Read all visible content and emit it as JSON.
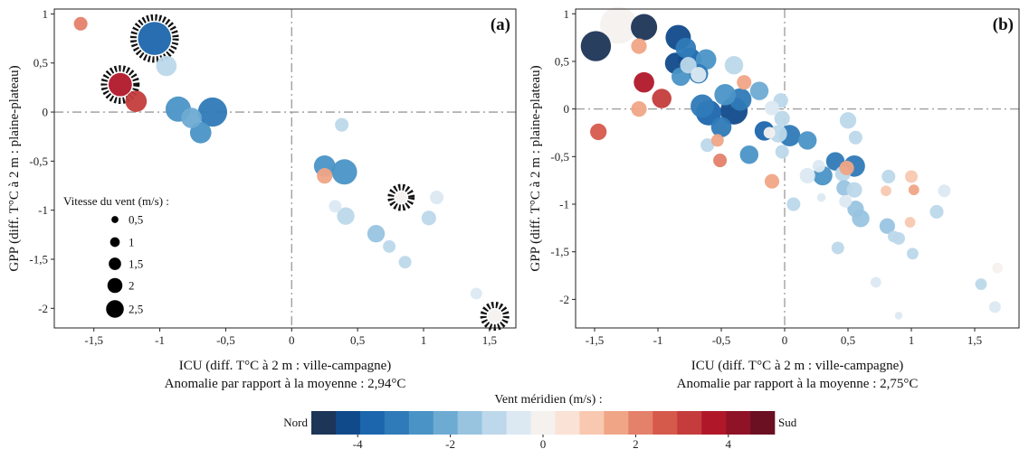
{
  "chart_data": [
    {
      "type": "scatter",
      "panel": "(a)",
      "xlabel": "ICU (diff. T°C à 2 m : ville-campagne)",
      "ylabel": "GPP (diff. T°C à 2 m : plaine-plateau)",
      "subtitle": "Anomalie par rapport à la moyenne : 2,94°C",
      "xlim": [
        -1.8,
        1.7
      ],
      "ylim": [
        -2.2,
        1.05
      ],
      "xticks": [
        -1.5,
        -1,
        -0.5,
        0,
        0.5,
        1,
        1.5
      ],
      "xtick_labels": [
        "-1,5",
        "-1",
        "-0,5",
        "0",
        "0,5",
        "1",
        "1,5"
      ],
      "yticks": [
        1,
        0.5,
        0,
        -0.5,
        -1,
        -1.5,
        -2
      ],
      "ytick_labels": [
        "1",
        "0,5",
        "0",
        "-0,5",
        "-1",
        "-1,5",
        "-2"
      ],
      "size_legend": {
        "title": "Vitesse du vent (m/s) :",
        "sizes": [
          0.5,
          1,
          1.5,
          2,
          2.5
        ],
        "labels": [
          "0,5",
          "1",
          "1,5",
          "2",
          "2,5"
        ]
      },
      "points": [
        {
          "x": -1.6,
          "y": 0.9,
          "wind": 0.8,
          "vm": 2.0
        },
        {
          "x": -1.04,
          "y": 0.75,
          "wind": 2.8,
          "vm": -3.5,
          "hatched": true
        },
        {
          "x": -0.95,
          "y": 0.47,
          "wind": 1.5,
          "vm": -1.2
        },
        {
          "x": -1.3,
          "y": 0.28,
          "wind": 1.8,
          "vm": 3.5,
          "hatched": true
        },
        {
          "x": -1.18,
          "y": 0.11,
          "wind": 1.6,
          "vm": 3.0
        },
        {
          "x": -0.86,
          "y": 0.03,
          "wind": 2.0,
          "vm": -2.8
        },
        {
          "x": -0.76,
          "y": -0.06,
          "wind": 1.5,
          "vm": -2.2
        },
        {
          "x": -0.6,
          "y": 0.0,
          "wind": 2.4,
          "vm": -3.0
        },
        {
          "x": -0.69,
          "y": -0.21,
          "wind": 1.6,
          "vm": -2.6
        },
        {
          "x": 0.38,
          "y": -0.13,
          "wind": 0.8,
          "vm": -1.0
        },
        {
          "x": 0.25,
          "y": -0.55,
          "wind": 1.6,
          "vm": -2.4
        },
        {
          "x": 0.4,
          "y": -0.61,
          "wind": 2.0,
          "vm": -2.8
        },
        {
          "x": 0.25,
          "y": -0.65,
          "wind": 1.0,
          "vm": 1.8
        },
        {
          "x": 0.83,
          "y": -0.87,
          "wind": 0.6,
          "vm": 0.0,
          "hatched": true
        },
        {
          "x": 1.1,
          "y": -0.87,
          "wind": 0.8,
          "vm": -0.6
        },
        {
          "x": 0.33,
          "y": -0.96,
          "wind": 0.7,
          "vm": -0.5
        },
        {
          "x": 0.41,
          "y": -1.06,
          "wind": 1.2,
          "vm": -1.2
        },
        {
          "x": 1.04,
          "y": -1.08,
          "wind": 0.9,
          "vm": -0.8
        },
        {
          "x": 0.64,
          "y": -1.24,
          "wind": 1.2,
          "vm": -1.6
        },
        {
          "x": 0.74,
          "y": -1.37,
          "wind": 0.7,
          "vm": -1.0
        },
        {
          "x": 0.86,
          "y": -1.53,
          "wind": 0.7,
          "vm": -0.9
        },
        {
          "x": 1.4,
          "y": -1.85,
          "wind": 0.6,
          "vm": -0.7
        },
        {
          "x": 1.54,
          "y": -2.08,
          "wind": 0.8,
          "vm": 0.0,
          "hatched": true
        }
      ]
    },
    {
      "type": "scatter",
      "panel": "(b)",
      "xlabel": "ICU (diff. T°C à 2 m : ville-campagne)",
      "ylabel": "GPP (diff. T°C à 2 m : plaine-plateau)",
      "subtitle": "Anomalie par rapport à la moyenne : 2,75°C",
      "xlim": [
        -1.65,
        1.85
      ],
      "ylim": [
        -2.3,
        1.05
      ],
      "xticks": [
        -1.5,
        -1,
        -0.5,
        0,
        0.5,
        1,
        1.5
      ],
      "xtick_labels": [
        "-1,5",
        "-1",
        "-0,5",
        "0",
        "0,5",
        "1",
        "1,5"
      ],
      "yticks": [
        1,
        0.5,
        0,
        -0.5,
        -1,
        -1.5,
        -2
      ],
      "ytick_labels": [
        "1",
        "0,5",
        "0",
        "-0,5",
        "-1",
        "-1,5",
        "-2"
      ],
      "points": [
        {
          "x": -1.49,
          "y": 0.66,
          "wind": 2.5,
          "vm": -5.0
        },
        {
          "x": -1.31,
          "y": 0.88,
          "wind": 3.2,
          "vm": -0.2
        },
        {
          "x": -1.11,
          "y": 0.86,
          "wind": 2.1,
          "vm": -4.5
        },
        {
          "x": -1.15,
          "y": 0.66,
          "wind": 1.0,
          "vm": 1.8
        },
        {
          "x": -1.11,
          "y": 0.28,
          "wind": 1.5,
          "vm": 3.6
        },
        {
          "x": -0.97,
          "y": 0.11,
          "wind": 1.4,
          "vm": 3.2
        },
        {
          "x": -1.15,
          "y": 0.0,
          "wind": 1.0,
          "vm": 1.6
        },
        {
          "x": -1.47,
          "y": -0.24,
          "wind": 1.1,
          "vm": 2.6
        },
        {
          "x": -0.84,
          "y": 0.75,
          "wind": 2.0,
          "vm": -4.0
        },
        {
          "x": -0.78,
          "y": 0.64,
          "wind": 1.5,
          "vm": -3.0
        },
        {
          "x": -0.86,
          "y": 0.48,
          "wind": 1.6,
          "vm": -4.2
        },
        {
          "x": -0.75,
          "y": 0.52,
          "wind": 1.8,
          "vm": -3.8
        },
        {
          "x": -0.76,
          "y": 0.46,
          "wind": 1.1,
          "vm": -1.2
        },
        {
          "x": -0.62,
          "y": 0.52,
          "wind": 1.5,
          "vm": -2.4
        },
        {
          "x": -0.68,
          "y": 0.37,
          "wind": 1.4,
          "vm": -3.0
        },
        {
          "x": -0.82,
          "y": 0.34,
          "wind": 1.3,
          "vm": -2.6
        },
        {
          "x": -0.68,
          "y": 0.36,
          "wind": 1.0,
          "vm": -0.3
        },
        {
          "x": -0.4,
          "y": 0.46,
          "wind": 1.3,
          "vm": -1.2
        },
        {
          "x": -0.32,
          "y": 0.28,
          "wind": 0.9,
          "vm": 1.5
        },
        {
          "x": -0.47,
          "y": 0.15,
          "wind": 1.6,
          "vm": -2.6
        },
        {
          "x": -0.2,
          "y": 0.19,
          "wind": 1.3,
          "vm": -2.0
        },
        {
          "x": -0.35,
          "y": 0.1,
          "wind": 1.7,
          "vm": -3.0
        },
        {
          "x": -0.65,
          "y": 0.03,
          "wind": 1.8,
          "vm": -3.3
        },
        {
          "x": -0.6,
          "y": -0.04,
          "wind": 2.0,
          "vm": -3.6
        },
        {
          "x": -0.4,
          "y": -0.02,
          "wind": 2.2,
          "vm": -4.0
        },
        {
          "x": -0.5,
          "y": -0.19,
          "wind": 1.5,
          "vm": -3.0
        },
        {
          "x": -0.16,
          "y": -0.23,
          "wind": 1.4,
          "vm": -3.6
        },
        {
          "x": -0.12,
          "y": -0.25,
          "wind": 0.6,
          "vm": 0.0
        },
        {
          "x": -0.02,
          "y": -0.1,
          "wind": 1.0,
          "vm": -0.8
        },
        {
          "x": -0.05,
          "y": -0.26,
          "wind": 1.2,
          "vm": -1.0
        },
        {
          "x": 0.04,
          "y": -0.28,
          "wind": 1.6,
          "vm": -3.2
        },
        {
          "x": 0.18,
          "y": -0.33,
          "wind": 1.3,
          "vm": -2.6
        },
        {
          "x": -0.03,
          "y": 0.09,
          "wind": 0.9,
          "vm": -0.9
        },
        {
          "x": -0.1,
          "y": 0.01,
          "wind": 0.9,
          "vm": -0.3
        },
        {
          "x": -0.61,
          "y": -0.38,
          "wind": 0.8,
          "vm": -0.9
        },
        {
          "x": -0.53,
          "y": -0.33,
          "wind": 0.7,
          "vm": 1.4
        },
        {
          "x": -0.51,
          "y": -0.54,
          "wind": 0.8,
          "vm": 2.2
        },
        {
          "x": -0.28,
          "y": -0.48,
          "wind": 1.3,
          "vm": -2.4
        },
        {
          "x": -0.02,
          "y": -0.45,
          "wind": 0.8,
          "vm": -0.9
        },
        {
          "x": -0.1,
          "y": -0.76,
          "wind": 0.9,
          "vm": 1.5
        },
        {
          "x": 0.18,
          "y": -0.7,
          "wind": 1.0,
          "vm": -0.6
        },
        {
          "x": 0.27,
          "y": -0.6,
          "wind": 0.7,
          "vm": -0.5
        },
        {
          "x": 0.3,
          "y": -0.7,
          "wind": 1.4,
          "vm": -2.4
        },
        {
          "x": 0.4,
          "y": -0.55,
          "wind": 1.3,
          "vm": -3.0
        },
        {
          "x": 0.55,
          "y": -0.6,
          "wind": 1.6,
          "vm": -3.2
        },
        {
          "x": 0.46,
          "y": -0.68,
          "wind": 1.0,
          "vm": -1.2
        },
        {
          "x": 0.49,
          "y": -0.62,
          "wind": 0.9,
          "vm": 1.6
        },
        {
          "x": 0.47,
          "y": -0.83,
          "wind": 1.0,
          "vm": -1.4
        },
        {
          "x": 0.55,
          "y": -0.85,
          "wind": 1.0,
          "vm": -1.0
        },
        {
          "x": 0.5,
          "y": -0.12,
          "wind": 1.1,
          "vm": -0.9
        },
        {
          "x": 0.56,
          "y": -0.3,
          "wind": 0.8,
          "vm": -0.8
        },
        {
          "x": 0.48,
          "y": -0.97,
          "wind": 0.7,
          "vm": -0.6
        },
        {
          "x": 0.56,
          "y": -1.05,
          "wind": 1.1,
          "vm": -1.4
        },
        {
          "x": 0.6,
          "y": -1.15,
          "wind": 1.2,
          "vm": -1.6
        },
        {
          "x": 0.07,
          "y": -1.0,
          "wind": 0.8,
          "vm": -1.0
        },
        {
          "x": 0.42,
          "y": -1.46,
          "wind": 0.7,
          "vm": -1.1
        },
        {
          "x": 0.82,
          "y": -0.71,
          "wind": 0.8,
          "vm": -0.8
        },
        {
          "x": 0.8,
          "y": -0.86,
          "wind": 0.5,
          "vm": 1.2
        },
        {
          "x": 1.0,
          "y": -0.71,
          "wind": 0.7,
          "vm": 1.0
        },
        {
          "x": 1.02,
          "y": -0.85,
          "wind": 0.5,
          "vm": 1.4
        },
        {
          "x": 0.81,
          "y": -1.23,
          "wind": 1.0,
          "vm": -1.4
        },
        {
          "x": 0.86,
          "y": -1.34,
          "wind": 0.6,
          "vm": -0.8
        },
        {
          "x": 0.9,
          "y": -1.36,
          "wind": 0.7,
          "vm": -0.9
        },
        {
          "x": 0.99,
          "y": -1.19,
          "wind": 0.5,
          "vm": 1.3
        },
        {
          "x": 1.01,
          "y": -1.52,
          "wind": 0.6,
          "vm": -1.0
        },
        {
          "x": 1.2,
          "y": -1.08,
          "wind": 0.8,
          "vm": -1.0
        },
        {
          "x": 1.26,
          "y": -0.86,
          "wind": 0.7,
          "vm": -0.6
        },
        {
          "x": 1.55,
          "y": -1.84,
          "wind": 0.6,
          "vm": -0.8
        },
        {
          "x": 1.66,
          "y": -2.08,
          "wind": 0.6,
          "vm": -0.5
        },
        {
          "x": 1.68,
          "y": -1.67,
          "wind": 0.5,
          "vm": -0.2
        },
        {
          "x": 0.72,
          "y": -1.82,
          "wind": 0.5,
          "vm": -0.5
        },
        {
          "x": 0.29,
          "y": -0.93,
          "wind": 0.3,
          "vm": -0.3
        },
        {
          "x": 0.9,
          "y": -2.17,
          "wind": 0.2,
          "vm": -0.4
        }
      ]
    }
  ],
  "color_legend": {
    "title": "Vent méridien (m/s) :",
    "left_label": "Nord",
    "right_label": "Sud",
    "min": -5,
    "max": 5,
    "tick_values": [
      -4,
      -2,
      0,
      2,
      4
    ],
    "tick_labels": [
      "-4",
      "-2",
      "0",
      "2",
      "4"
    ],
    "colors": [
      "#1d3557",
      "#114a8b",
      "#1c66ad",
      "#2f7ab8",
      "#4a93c6",
      "#6eabd3",
      "#98c4e0",
      "#bcd8ea",
      "#dce9f2",
      "#f4f1ef",
      "#fbe2d6",
      "#f8c8b0",
      "#f0a586",
      "#e4816a",
      "#d65a4c",
      "#c43c3c",
      "#b0182a",
      "#8f1227",
      "#6b0f23"
    ]
  }
}
